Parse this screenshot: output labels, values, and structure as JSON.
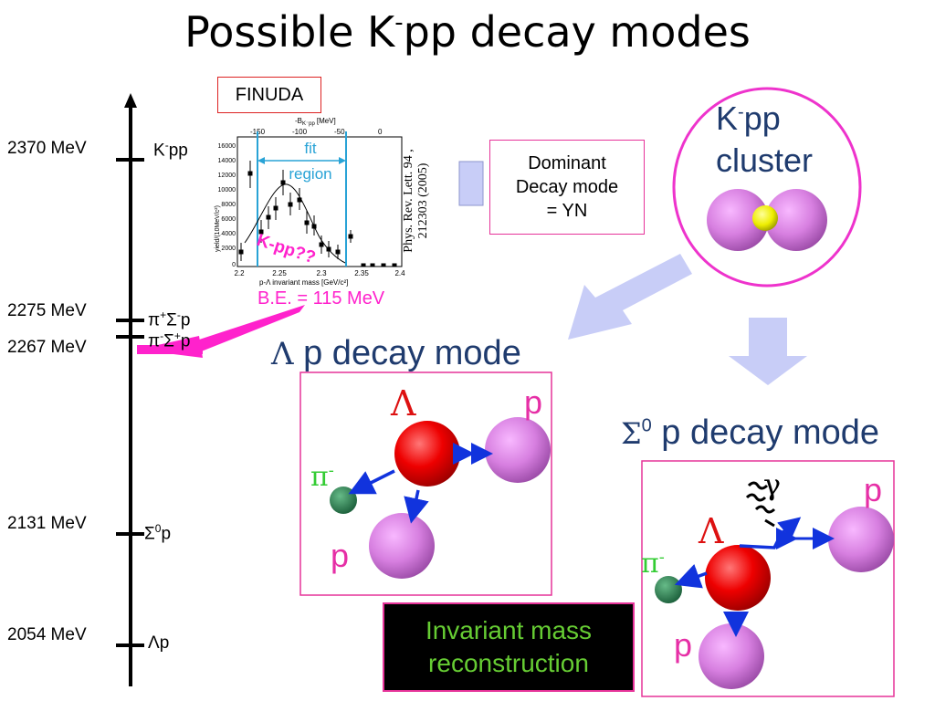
{
  "title": {
    "main": "Possible K",
    "sup": "-",
    "rest": "pp decay modes"
  },
  "levels": [
    {
      "mev": "2370 MeV",
      "label": "K",
      "sup": "-",
      "label2": "pp"
    },
    {
      "mev": "2275 MeV",
      "label": "π",
      "sup": "+",
      "mid": "Σ",
      "sup2": "-",
      "label2": "p"
    },
    {
      "mev": "2267 MeV",
      "label": "π",
      "sup": "-",
      "mid": "Σ",
      "sup2": "+",
      "label2": "p"
    },
    {
      "mev": "2131 MeV",
      "label": "Σ",
      "sup": "0",
      "label2": "p"
    },
    {
      "mev": "2054 MeV",
      "label": "Λ",
      "label2": "p"
    }
  ],
  "finuda": "FINUDA",
  "plot": {
    "top_axis_label": "-B",
    "top_axis_sub": "K⁻pp",
    "top_axis_unit": "[MeV]",
    "top_ticks": [
      "-150",
      "-100",
      "-50",
      "0"
    ],
    "y_axis_label": "yield/(10MeV/c²)",
    "y_ticks": [
      "16000",
      "14000",
      "12000",
      "10000",
      "8000",
      "6000",
      "4000",
      "2000",
      "0"
    ],
    "x_ticks": [
      "2.2",
      "2.25",
      "2.3",
      "2.35",
      "2.4"
    ],
    "x_axis_label": "p-Λ invariant mass [GeV/c²]",
    "fit_label_1": "fit",
    "fit_label_2": "region",
    "kpp_label": "K-pp??"
  },
  "be_label": "B.E. = 115 MeV",
  "reference": "Phys. Rev. Lett. 94 , 212303 (2005)",
  "dominant": {
    "line1": "Dominant",
    "line2": "Decay mode",
    "line3": "= YN"
  },
  "cluster": {
    "k": "K",
    "sup": "-",
    "pp": "pp",
    "word": "cluster"
  },
  "lambda_mode": {
    "symbol": "Λ",
    "text": " p decay mode"
  },
  "sigma_mode": {
    "symbol": "Σ",
    "sup": "0",
    "text": " p decay mode"
  },
  "particles": {
    "lambda": "Λ",
    "proton": "p",
    "pion": "π",
    "pion_sup": "-",
    "gamma": "γ"
  },
  "invariant": {
    "line1": "Invariant mass",
    "line2": "reconstruction"
  },
  "colors": {
    "heading": "#1f3b6e",
    "magenta": "#ff22cc",
    "pink_border": "#e63399",
    "green_text": "#66cc33"
  }
}
